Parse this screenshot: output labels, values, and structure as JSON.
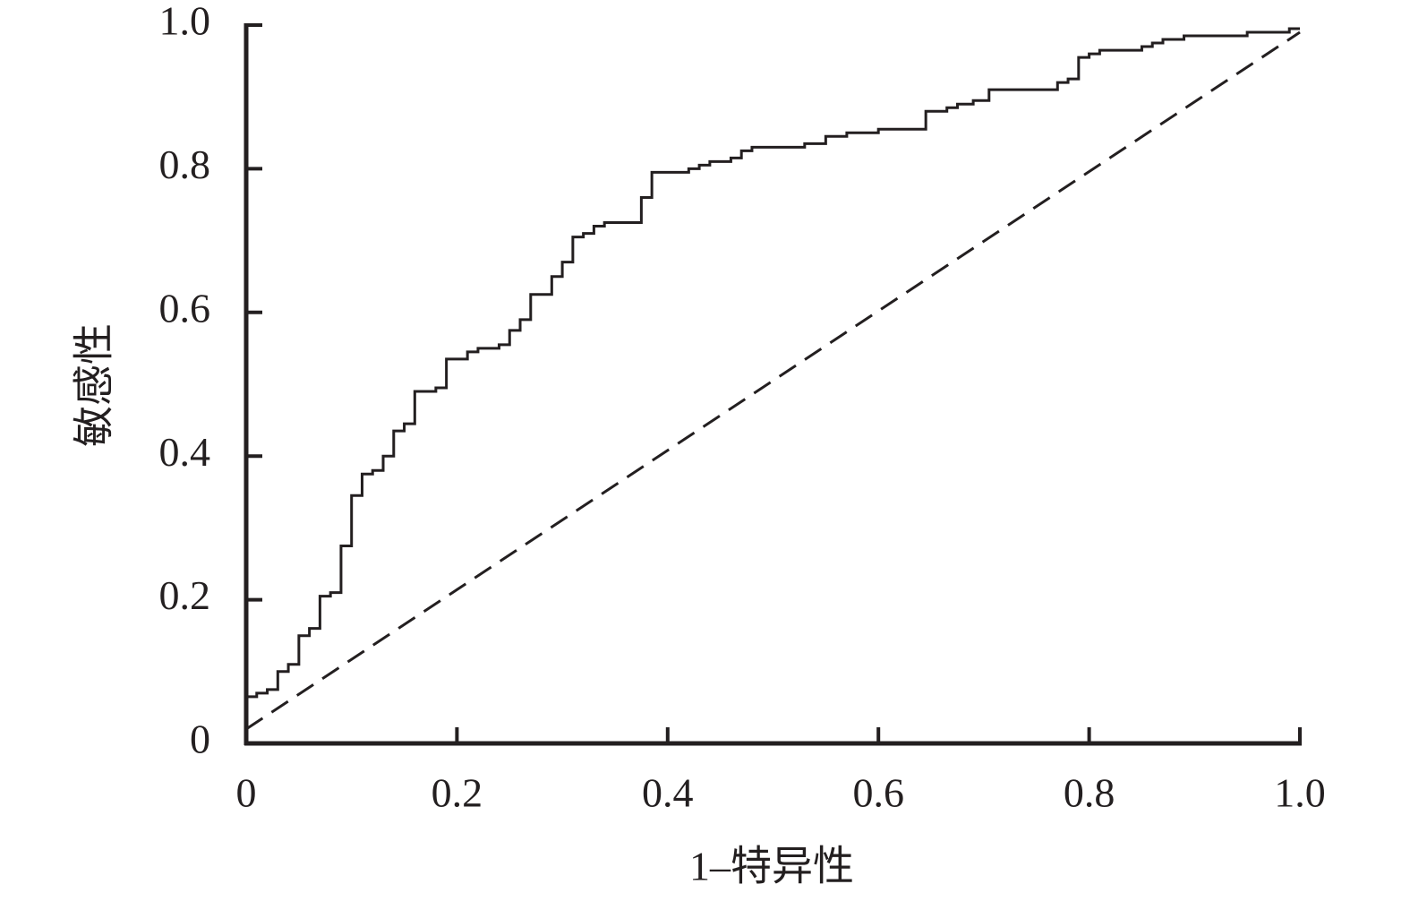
{
  "chart_data": {
    "type": "line",
    "xlabel": "1–特异性",
    "ylabel": "敏感性",
    "xlim": [
      0,
      1
    ],
    "ylim": [
      0,
      1
    ],
    "xticks": [
      0,
      0.2,
      0.4,
      0.6,
      0.8,
      {
        "value": 1,
        "label": "1.0"
      }
    ],
    "yticks": [
      0,
      0.2,
      0.4,
      0.6,
      0.8,
      {
        "value": 1,
        "label": "1.0"
      }
    ],
    "grid": false,
    "series": [
      {
        "color": "#231f20",
        "style": "solid",
        "x": [
          0,
          0.01,
          0.01,
          0.02,
          0.02,
          0.03,
          0.03,
          0.04,
          0.04,
          0.05,
          0.05,
          0.06,
          0.06,
          0.07,
          0.07,
          0.08,
          0.08,
          0.09,
          0.09,
          0.1,
          0.1,
          0.11,
          0.11,
          0.12,
          0.12,
          0.13,
          0.13,
          0.14,
          0.14,
          0.15,
          0.15,
          0.16,
          0.16,
          0.18,
          0.18,
          0.19,
          0.19,
          0.21,
          0.21,
          0.22,
          0.22,
          0.24,
          0.24,
          0.25,
          0.25,
          0.26,
          0.26,
          0.27,
          0.27,
          0.29,
          0.29,
          0.3,
          0.3,
          0.31,
          0.31,
          0.32,
          0.32,
          0.33,
          0.33,
          0.34,
          0.34,
          0.375,
          0.375,
          0.385,
          0.385,
          0.42,
          0.42,
          0.43,
          0.43,
          0.44,
          0.44,
          0.46,
          0.46,
          0.47,
          0.47,
          0.48,
          0.48,
          0.53,
          0.53,
          0.55,
          0.55,
          0.57,
          0.57,
          0.6,
          0.6,
          0.645,
          0.645,
          0.665,
          0.665,
          0.675,
          0.675,
          0.69,
          0.69,
          0.705,
          0.705,
          0.77,
          0.77,
          0.78,
          0.78,
          0.79,
          0.79,
          0.8,
          0.8,
          0.81,
          0.81,
          0.85,
          0.85,
          0.86,
          0.86,
          0.87,
          0.87,
          0.89,
          0.89,
          0.95,
          0.95,
          0.99,
          0.99,
          1
        ],
        "values": [
          0.065,
          0.065,
          0.07,
          0.07,
          0.075,
          0.075,
          0.1,
          0.1,
          0.11,
          0.11,
          0.15,
          0.15,
          0.16,
          0.16,
          0.205,
          0.205,
          0.21,
          0.21,
          0.275,
          0.275,
          0.345,
          0.345,
          0.375,
          0.375,
          0.38,
          0.38,
          0.4,
          0.4,
          0.435,
          0.435,
          0.445,
          0.445,
          0.49,
          0.49,
          0.495,
          0.495,
          0.535,
          0.535,
          0.545,
          0.545,
          0.55,
          0.55,
          0.555,
          0.555,
          0.575,
          0.575,
          0.59,
          0.59,
          0.625,
          0.625,
          0.65,
          0.65,
          0.67,
          0.67,
          0.705,
          0.705,
          0.71,
          0.71,
          0.72,
          0.72,
          0.725,
          0.725,
          0.76,
          0.76,
          0.795,
          0.795,
          0.8,
          0.8,
          0.805,
          0.805,
          0.81,
          0.81,
          0.815,
          0.815,
          0.825,
          0.825,
          0.83,
          0.83,
          0.835,
          0.835,
          0.845,
          0.845,
          0.85,
          0.85,
          0.855,
          0.855,
          0.88,
          0.88,
          0.885,
          0.885,
          0.89,
          0.89,
          0.895,
          0.895,
          0.91,
          0.91,
          0.92,
          0.92,
          0.925,
          0.925,
          0.955,
          0.955,
          0.96,
          0.96,
          0.965,
          0.965,
          0.97,
          0.97,
          0.975,
          0.975,
          0.98,
          0.98,
          0.985,
          0.985,
          0.99,
          0.99,
          0.995,
          0.995
        ]
      },
      {
        "color": "#231f20",
        "style": "dashed",
        "x": [
          0,
          1
        ],
        "values": [
          0.02,
          0.99
        ]
      }
    ]
  }
}
